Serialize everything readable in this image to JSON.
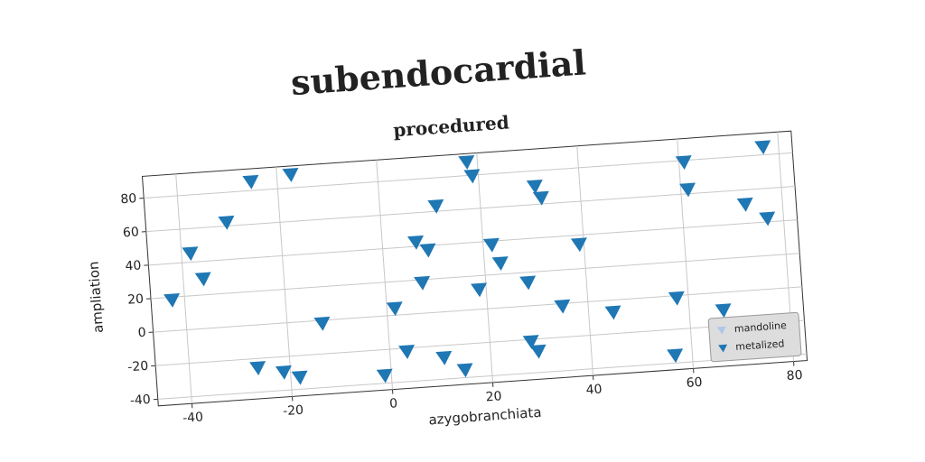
{
  "chart_data": {
    "type": "scatter",
    "title": "subendocardial",
    "subtitle": "procedured",
    "x_label": "azygobranchiata",
    "y_label": "ampliation",
    "xlim": [
      -46.7,
      82.7
    ],
    "ylim": [
      -44,
      93
    ],
    "xticks": [
      -40,
      -20,
      0,
      20,
      40,
      60,
      80
    ],
    "yticks": [
      -40,
      -20,
      0,
      20,
      40,
      60,
      80
    ],
    "grid": true,
    "legend": "lower right",
    "marker": "triangle_down",
    "series": [
      {
        "name": "mandoline",
        "color": "#aec7e8",
        "x": [],
        "y": []
      },
      {
        "name": "metalized",
        "color": "#1f77b4",
        "x": [
          -42.5,
          -38.2,
          -36.0,
          -30.6,
          -25.2,
          -17.2,
          -26.4,
          -21.3,
          -18.2,
          -13.0,
          -1.3,
          1.6,
          3.4,
          6.7,
          9.0,
          7.4,
          10.7,
          11.2,
          14.7,
          18.6,
          17.9,
          18.8,
          21.7,
          23.2,
          28.4,
          28.2,
          29.5,
          31.1,
          32.2,
          34.9,
          39.1,
          44.9,
          56.6,
          57.7,
          61.0,
          61.4,
          66.8,
          72.6,
          76.9,
          76.8
        ],
        "y": [
          18.1,
          45.1,
          29.4,
          62.0,
          85.1,
          87.7,
          -25.7,
          -29.3,
          -33.1,
          -2.0,
          -35.5,
          3.9,
          -22.2,
          42.4,
          37.2,
          18.0,
          -27.4,
          63.0,
          -35.5,
          11.6,
          87.9,
          79.4,
          37.7,
          26.4,
          13.8,
          -21.5,
          -27.5,
          70.6,
          63.5,
          -1.7,
          34.3,
          -7.4,
          -35.6,
          -1.6,
          78.8,
          62.4,
          -10.8,
          51.2,
          84.5,
          41.9
        ]
      }
    ]
  }
}
